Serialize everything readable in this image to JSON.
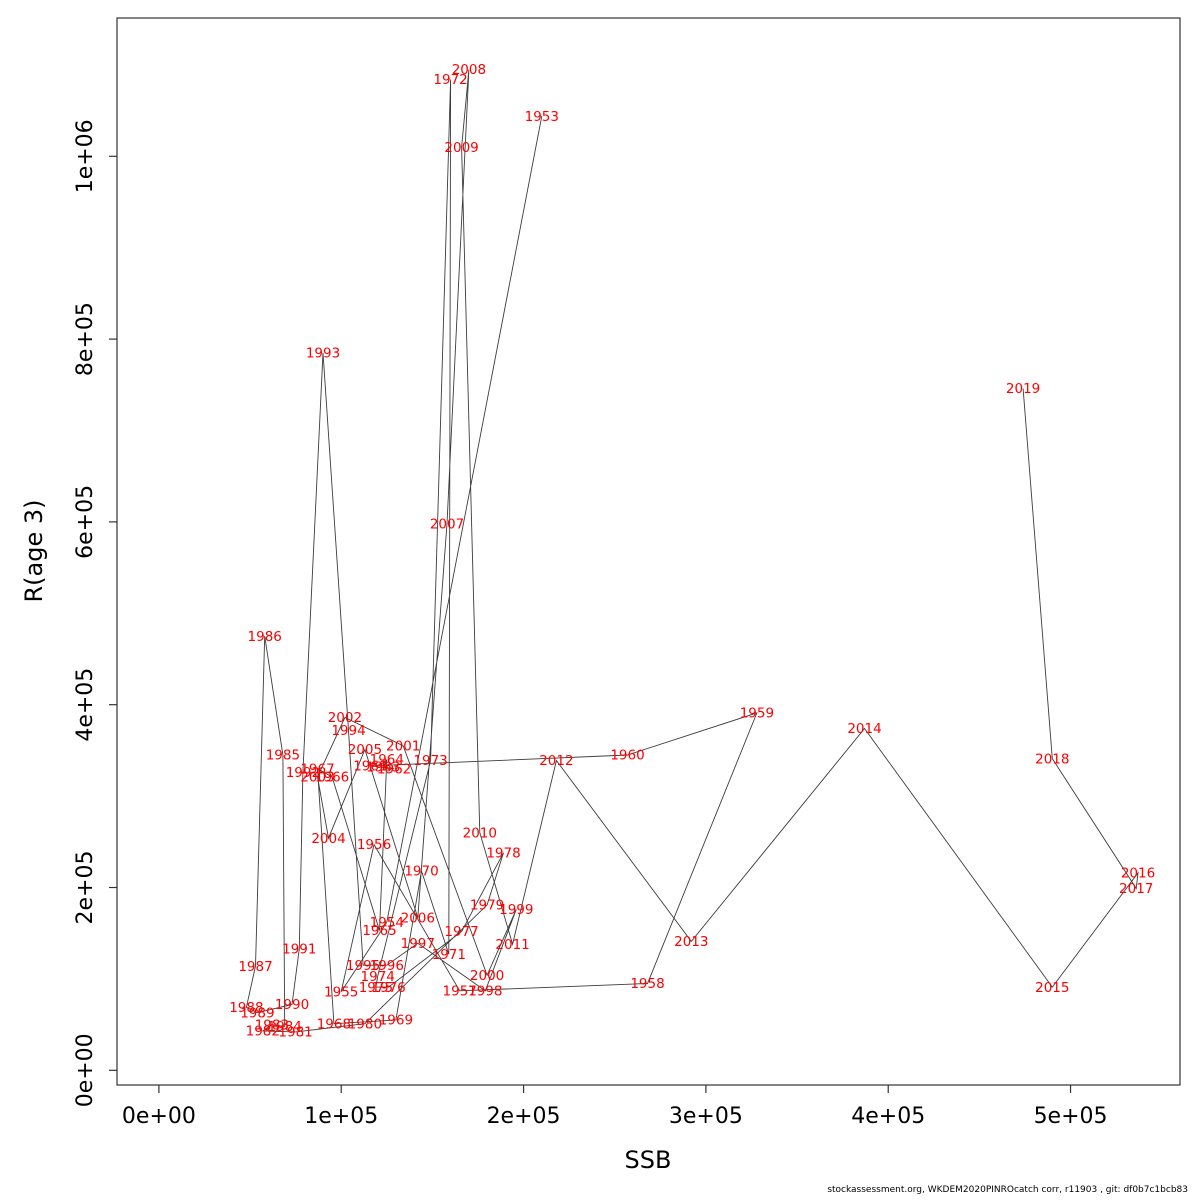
{
  "footer": {
    "text": "stockassessment.org, WKDEM2020PINROcatch corr, r11903 , git: df0b7c1bcb83"
  },
  "chart_data": {
    "type": "scatter",
    "title": "",
    "xlabel": "SSB",
    "ylabel": "R(age 3)",
    "grid": false,
    "legend": "none",
    "point_label_color": "#ff0000",
    "line_color": "#3c3c3c",
    "axis_color": "#333333",
    "xlim": [
      0,
      560000
    ],
    "ylim": [
      0,
      1150000
    ],
    "x_ticks": [
      {
        "value": 0,
        "label": "0e+00"
      },
      {
        "value": 100000,
        "label": "1e+05"
      },
      {
        "value": 200000,
        "label": "2e+05"
      },
      {
        "value": 300000,
        "label": "3e+05"
      },
      {
        "value": 400000,
        "label": "4e+05"
      },
      {
        "value": 500000,
        "label": "5e+05"
      }
    ],
    "y_ticks": [
      {
        "value": 0,
        "label": "0e+00"
      },
      {
        "value": 200000,
        "label": "2e+05"
      },
      {
        "value": 400000,
        "label": "4e+05"
      },
      {
        "value": 600000,
        "label": "6e+05"
      },
      {
        "value": 800000,
        "label": "8e+05"
      },
      {
        "value": 1000000,
        "label": "1e+06"
      }
    ],
    "series": [
      {
        "name": "stock-recruitment-path",
        "points": [
          {
            "year": 1953,
            "ssb": 210000,
            "r": 1044000
          },
          {
            "year": 1954,
            "ssb": 125000,
            "r": 162000
          },
          {
            "year": 1955,
            "ssb": 100000,
            "r": 86000
          },
          {
            "year": 1956,
            "ssb": 118000,
            "r": 247000
          },
          {
            "year": 1957,
            "ssb": 165000,
            "r": 87000
          },
          {
            "year": 1958,
            "ssb": 268000,
            "r": 95000
          },
          {
            "year": 1959,
            "ssb": 328000,
            "r": 391000
          },
          {
            "year": 1960,
            "ssb": 257000,
            "r": 345000
          },
          {
            "year": 1961,
            "ssb": 116000,
            "r": 333000
          },
          {
            "year": 1962,
            "ssb": 129000,
            "r": 330000
          },
          {
            "year": 1963,
            "ssb": 123000,
            "r": 332000
          },
          {
            "year": 1964,
            "ssb": 125000,
            "r": 340000
          },
          {
            "year": 1965,
            "ssb": 121000,
            "r": 153000
          },
          {
            "year": 1966,
            "ssb": 95000,
            "r": 321000
          },
          {
            "year": 1967,
            "ssb": 87000,
            "r": 330000
          },
          {
            "year": 1968,
            "ssb": 96000,
            "r": 51000
          },
          {
            "year": 1969,
            "ssb": 130000,
            "r": 55000
          },
          {
            "year": 1970,
            "ssb": 144000,
            "r": 218000
          },
          {
            "year": 1971,
            "ssb": 159000,
            "r": 127000
          },
          {
            "year": 1972,
            "ssb": 160000,
            "r": 1084000
          },
          {
            "year": 1973,
            "ssb": 149000,
            "r": 339000
          },
          {
            "year": 1974,
            "ssb": 120000,
            "r": 103000
          },
          {
            "year": 1975,
            "ssb": 119000,
            "r": 91000
          },
          {
            "year": 1976,
            "ssb": 126000,
            "r": 91000
          },
          {
            "year": 1977,
            "ssb": 166000,
            "r": 152000
          },
          {
            "year": 1978,
            "ssb": 189000,
            "r": 238000
          },
          {
            "year": 1979,
            "ssb": 180000,
            "r": 181000
          },
          {
            "year": 1980,
            "ssb": 113000,
            "r": 51000
          },
          {
            "year": 1981,
            "ssb": 75000,
            "r": 42000
          },
          {
            "year": 1982,
            "ssb": 57000,
            "r": 43000
          },
          {
            "year": 1983,
            "ssb": 62000,
            "r": 50000
          },
          {
            "year": 1984,
            "ssb": 69000,
            "r": 48000
          },
          {
            "year": 1985,
            "ssb": 68000,
            "r": 345000
          },
          {
            "year": 1986,
            "ssb": 58000,
            "r": 475000
          },
          {
            "year": 1987,
            "ssb": 53000,
            "r": 114000
          },
          {
            "year": 1988,
            "ssb": 48000,
            "r": 69000
          },
          {
            "year": 1989,
            "ssb": 54000,
            "r": 63000
          },
          {
            "year": 1990,
            "ssb": 73000,
            "r": 72000
          },
          {
            "year": 1991,
            "ssb": 77000,
            "r": 133000
          },
          {
            "year": 1992,
            "ssb": 79000,
            "r": 326000
          },
          {
            "year": 1993,
            "ssb": 90000,
            "r": 785000
          },
          {
            "year": 1994,
            "ssb": 104000,
            "r": 372000
          },
          {
            "year": 1995,
            "ssb": 112000,
            "r": 115000
          },
          {
            "year": 1996,
            "ssb": 125000,
            "r": 115000
          },
          {
            "year": 1997,
            "ssb": 142000,
            "r": 139000
          },
          {
            "year": 1998,
            "ssb": 179000,
            "r": 87000
          },
          {
            "year": 1999,
            "ssb": 196000,
            "r": 176000
          },
          {
            "year": 2000,
            "ssb": 180000,
            "r": 104000
          },
          {
            "year": 2001,
            "ssb": 134000,
            "r": 355000
          },
          {
            "year": 2002,
            "ssb": 102000,
            "r": 386000
          },
          {
            "year": 2003,
            "ssb": 87000,
            "r": 321000
          },
          {
            "year": 2004,
            "ssb": 93000,
            "r": 254000
          },
          {
            "year": 2005,
            "ssb": 113000,
            "r": 351000
          },
          {
            "year": 2006,
            "ssb": 142000,
            "r": 167000
          },
          {
            "year": 2007,
            "ssb": 158000,
            "r": 598000
          },
          {
            "year": 2008,
            "ssb": 170000,
            "r": 1095000
          },
          {
            "year": 2009,
            "ssb": 166000,
            "r": 1010000
          },
          {
            "year": 2010,
            "ssb": 176000,
            "r": 260000
          },
          {
            "year": 2011,
            "ssb": 194000,
            "r": 138000
          },
          {
            "year": 2012,
            "ssb": 218000,
            "r": 339000
          },
          {
            "year": 2013,
            "ssb": 292000,
            "r": 141000
          },
          {
            "year": 2014,
            "ssb": 387000,
            "r": 374000
          },
          {
            "year": 2015,
            "ssb": 490000,
            "r": 91000
          },
          {
            "year": 2016,
            "ssb": 537000,
            "r": 216000
          },
          {
            "year": 2017,
            "ssb": 536000,
            "r": 199000
          },
          {
            "year": 2018,
            "ssb": 490000,
            "r": 341000
          },
          {
            "year": 2019,
            "ssb": 474000,
            "r": 746000
          }
        ]
      }
    ]
  }
}
